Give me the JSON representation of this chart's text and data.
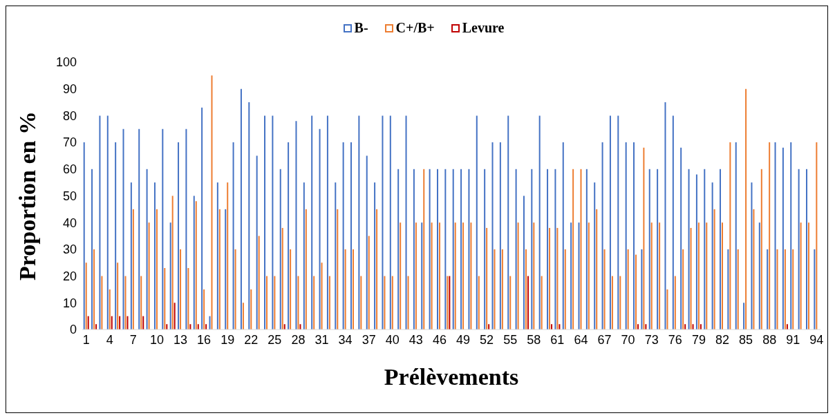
{
  "chart_data": {
    "type": "bar",
    "xlabel": "Prélèvements",
    "ylabel": "Proportion en %",
    "categories": [
      "1",
      null,
      null,
      "4",
      null,
      null,
      "7",
      null,
      null,
      "10",
      null,
      null,
      "13",
      null,
      null,
      "16",
      null,
      null,
      "19",
      null,
      null,
      "22",
      null,
      null,
      "25",
      null,
      null,
      "28",
      null,
      null,
      "31",
      null,
      null,
      "34",
      null,
      null,
      "37",
      null,
      null,
      "40",
      null,
      null,
      "43",
      null,
      null,
      "46",
      null,
      null,
      "49",
      null,
      null,
      "52",
      null,
      null,
      "55",
      null,
      null,
      "58",
      null,
      null,
      "61",
      null,
      null,
      "64",
      null,
      null,
      "67",
      null,
      null,
      "70",
      null,
      null,
      "73",
      null,
      null,
      "76",
      null,
      null,
      "79",
      null,
      null,
      "82",
      null,
      null,
      "85",
      null,
      null,
      "88",
      null,
      null,
      "91",
      null,
      null,
      "94"
    ],
    "series": [
      {
        "name": "B-",
        "color": "#4472c4",
        "values": [
          70,
          60,
          80,
          80,
          70,
          75,
          55,
          75,
          60,
          55,
          75,
          40,
          70,
          75,
          50,
          83,
          5,
          55,
          45,
          70,
          90,
          85,
          65,
          80,
          80,
          60,
          70,
          78,
          55,
          80,
          75,
          80,
          55,
          70,
          70,
          80,
          65,
          55,
          80,
          80,
          60,
          80,
          60,
          40,
          60,
          60,
          60,
          60,
          60,
          60,
          80,
          60,
          70,
          70,
          80,
          60,
          50,
          60,
          80,
          60,
          60,
          70,
          40,
          40,
          60,
          55,
          70,
          80,
          80,
          70,
          70,
          30,
          60,
          60,
          85,
          80,
          68,
          60,
          58,
          60,
          55,
          60,
          30,
          70,
          10,
          55,
          40,
          30,
          70,
          68,
          70,
          60,
          60,
          30
        ]
      },
      {
        "name": "C+/B+",
        "color": "#ed7d31",
        "values": [
          25,
          30,
          20,
          15,
          25,
          20,
          45,
          20,
          40,
          45,
          23,
          50,
          30,
          23,
          48,
          15,
          95,
          45,
          55,
          30,
          10,
          15,
          35,
          20,
          20,
          38,
          30,
          20,
          45,
          20,
          25,
          20,
          45,
          30,
          30,
          20,
          35,
          45,
          20,
          20,
          40,
          20,
          40,
          60,
          40,
          40,
          20,
          40,
          40,
          40,
          20,
          38,
          30,
          30,
          20,
          40,
          30,
          40,
          20,
          38,
          38,
          30,
          60,
          60,
          40,
          45,
          30,
          20,
          20,
          30,
          28,
          68,
          40,
          40,
          15,
          20,
          30,
          38,
          40,
          40,
          45,
          40,
          70,
          30,
          90,
          45,
          60,
          70,
          30,
          30,
          30,
          40,
          40,
          70
        ]
      },
      {
        "name": "Levure",
        "color": "#c00000",
        "values": [
          5,
          2,
          null,
          5,
          5,
          5,
          null,
          5,
          null,
          null,
          2,
          10,
          null,
          2,
          2,
          2,
          null,
          null,
          null,
          null,
          null,
          null,
          null,
          null,
          null,
          2,
          null,
          2,
          null,
          null,
          null,
          null,
          null,
          null,
          null,
          null,
          null,
          null,
          null,
          null,
          null,
          null,
          null,
          null,
          null,
          null,
          20,
          null,
          null,
          null,
          null,
          2,
          null,
          null,
          null,
          null,
          20,
          null,
          null,
          2,
          2,
          null,
          null,
          null,
          null,
          null,
          null,
          null,
          null,
          null,
          2,
          2,
          null,
          null,
          null,
          null,
          2,
          2,
          2,
          null,
          null,
          null,
          null,
          null,
          null,
          null,
          null,
          null,
          null,
          2,
          null,
          null,
          null,
          null
        ]
      }
    ],
    "ylim": [
      0,
      100
    ],
    "yticks": [
      0,
      10,
      20,
      30,
      40,
      50,
      60,
      70,
      80,
      90,
      100
    ],
    "grid": false,
    "legend": "top"
  }
}
